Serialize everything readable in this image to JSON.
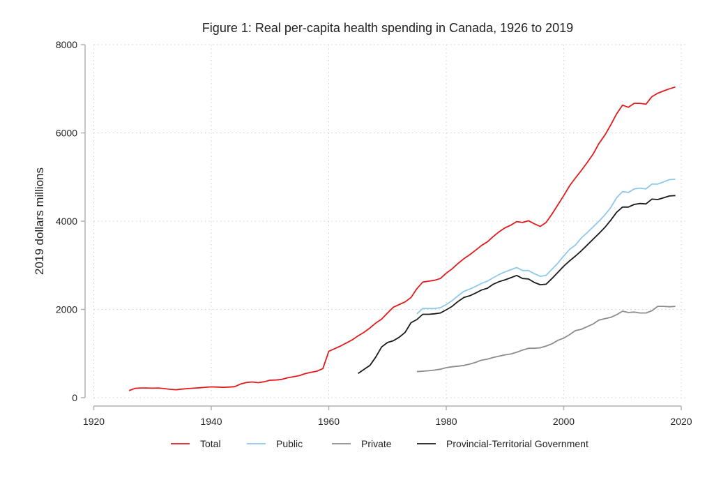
{
  "chart_data": {
    "type": "line",
    "title": "Figure 1: Real per-capita health spending in Canada, 1926 to 2019",
    "xlabel": "",
    "ylabel": "2019 dollars millions",
    "xlim": [
      1920,
      2020
    ],
    "ylim": [
      0,
      8000
    ],
    "x_ticks": [
      "1920",
      "1940",
      "1960",
      "1980",
      "2000",
      "2020"
    ],
    "y_ticks": [
      "0",
      "2000",
      "4000",
      "6000",
      "8000"
    ],
    "grid": true,
    "legend_position": "bottom",
    "series": [
      {
        "name": "Total",
        "color": "#e31a1c",
        "x_start": 1926,
        "values": [
          160,
          210,
          220,
          220,
          215,
          220,
          205,
          190,
          180,
          195,
          205,
          215,
          225,
          235,
          245,
          240,
          235,
          240,
          250,
          310,
          345,
          355,
          340,
          360,
          395,
          400,
          415,
          450,
          475,
          500,
          545,
          575,
          600,
          660,
          1050,
          1110,
          1170,
          1240,
          1310,
          1400,
          1480,
          1580,
          1690,
          1780,
          1920,
          2050,
          2110,
          2170,
          2270,
          2470,
          2620,
          2640,
          2660,
          2700,
          2820,
          2920,
          3040,
          3150,
          3240,
          3340,
          3450,
          3530,
          3650,
          3760,
          3850,
          3910,
          3990,
          3970,
          4010,
          3940,
          3880,
          3970,
          4160,
          4370,
          4580,
          4800,
          4980,
          5150,
          5330,
          5520,
          5760,
          5950,
          6180,
          6430,
          6630,
          6580,
          6670,
          6670,
          6650,
          6820,
          6900,
          6950,
          7000,
          7040
        ]
      },
      {
        "name": "Public",
        "color": "#8ec8ec",
        "x_start": 1975,
        "values": [
          1900,
          2020,
          2020,
          2020,
          2040,
          2110,
          2200,
          2310,
          2410,
          2460,
          2520,
          2590,
          2640,
          2720,
          2790,
          2850,
          2900,
          2950,
          2880,
          2880,
          2810,
          2750,
          2770,
          2910,
          3050,
          3210,
          3360,
          3460,
          3620,
          3740,
          3870,
          4000,
          4140,
          4310,
          4530,
          4670,
          4650,
          4730,
          4750,
          4730,
          4840,
          4840,
          4890,
          4940,
          4950
        ]
      },
      {
        "name": "Private",
        "color": "#8c8c8c",
        "x_start": 1975,
        "values": [
          590,
          600,
          610,
          625,
          645,
          680,
          700,
          715,
          730,
          760,
          800,
          850,
          875,
          910,
          940,
          970,
          990,
          1030,
          1080,
          1120,
          1120,
          1130,
          1170,
          1220,
          1300,
          1350,
          1430,
          1520,
          1550,
          1610,
          1670,
          1760,
          1790,
          1820,
          1880,
          1960,
          1930,
          1940,
          1920,
          1920,
          1970,
          2070,
          2070,
          2060,
          2070
        ]
      },
      {
        "name": "Provincial-Territorial Government",
        "color": "#1a1a1a",
        "x_start": 1965,
        "values": [
          550,
          640,
          730,
          920,
          1150,
          1250,
          1290,
          1370,
          1480,
          1700,
          1770,
          1890,
          1890,
          1900,
          1920,
          1990,
          2070,
          2180,
          2270,
          2310,
          2370,
          2440,
          2480,
          2570,
          2630,
          2670,
          2720,
          2770,
          2700,
          2690,
          2610,
          2560,
          2570,
          2700,
          2840,
          2980,
          3100,
          3210,
          3330,
          3460,
          3590,
          3720,
          3860,
          4020,
          4200,
          4320,
          4320,
          4380,
          4400,
          4390,
          4500,
          4490,
          4530,
          4570,
          4580
        ]
      }
    ]
  }
}
